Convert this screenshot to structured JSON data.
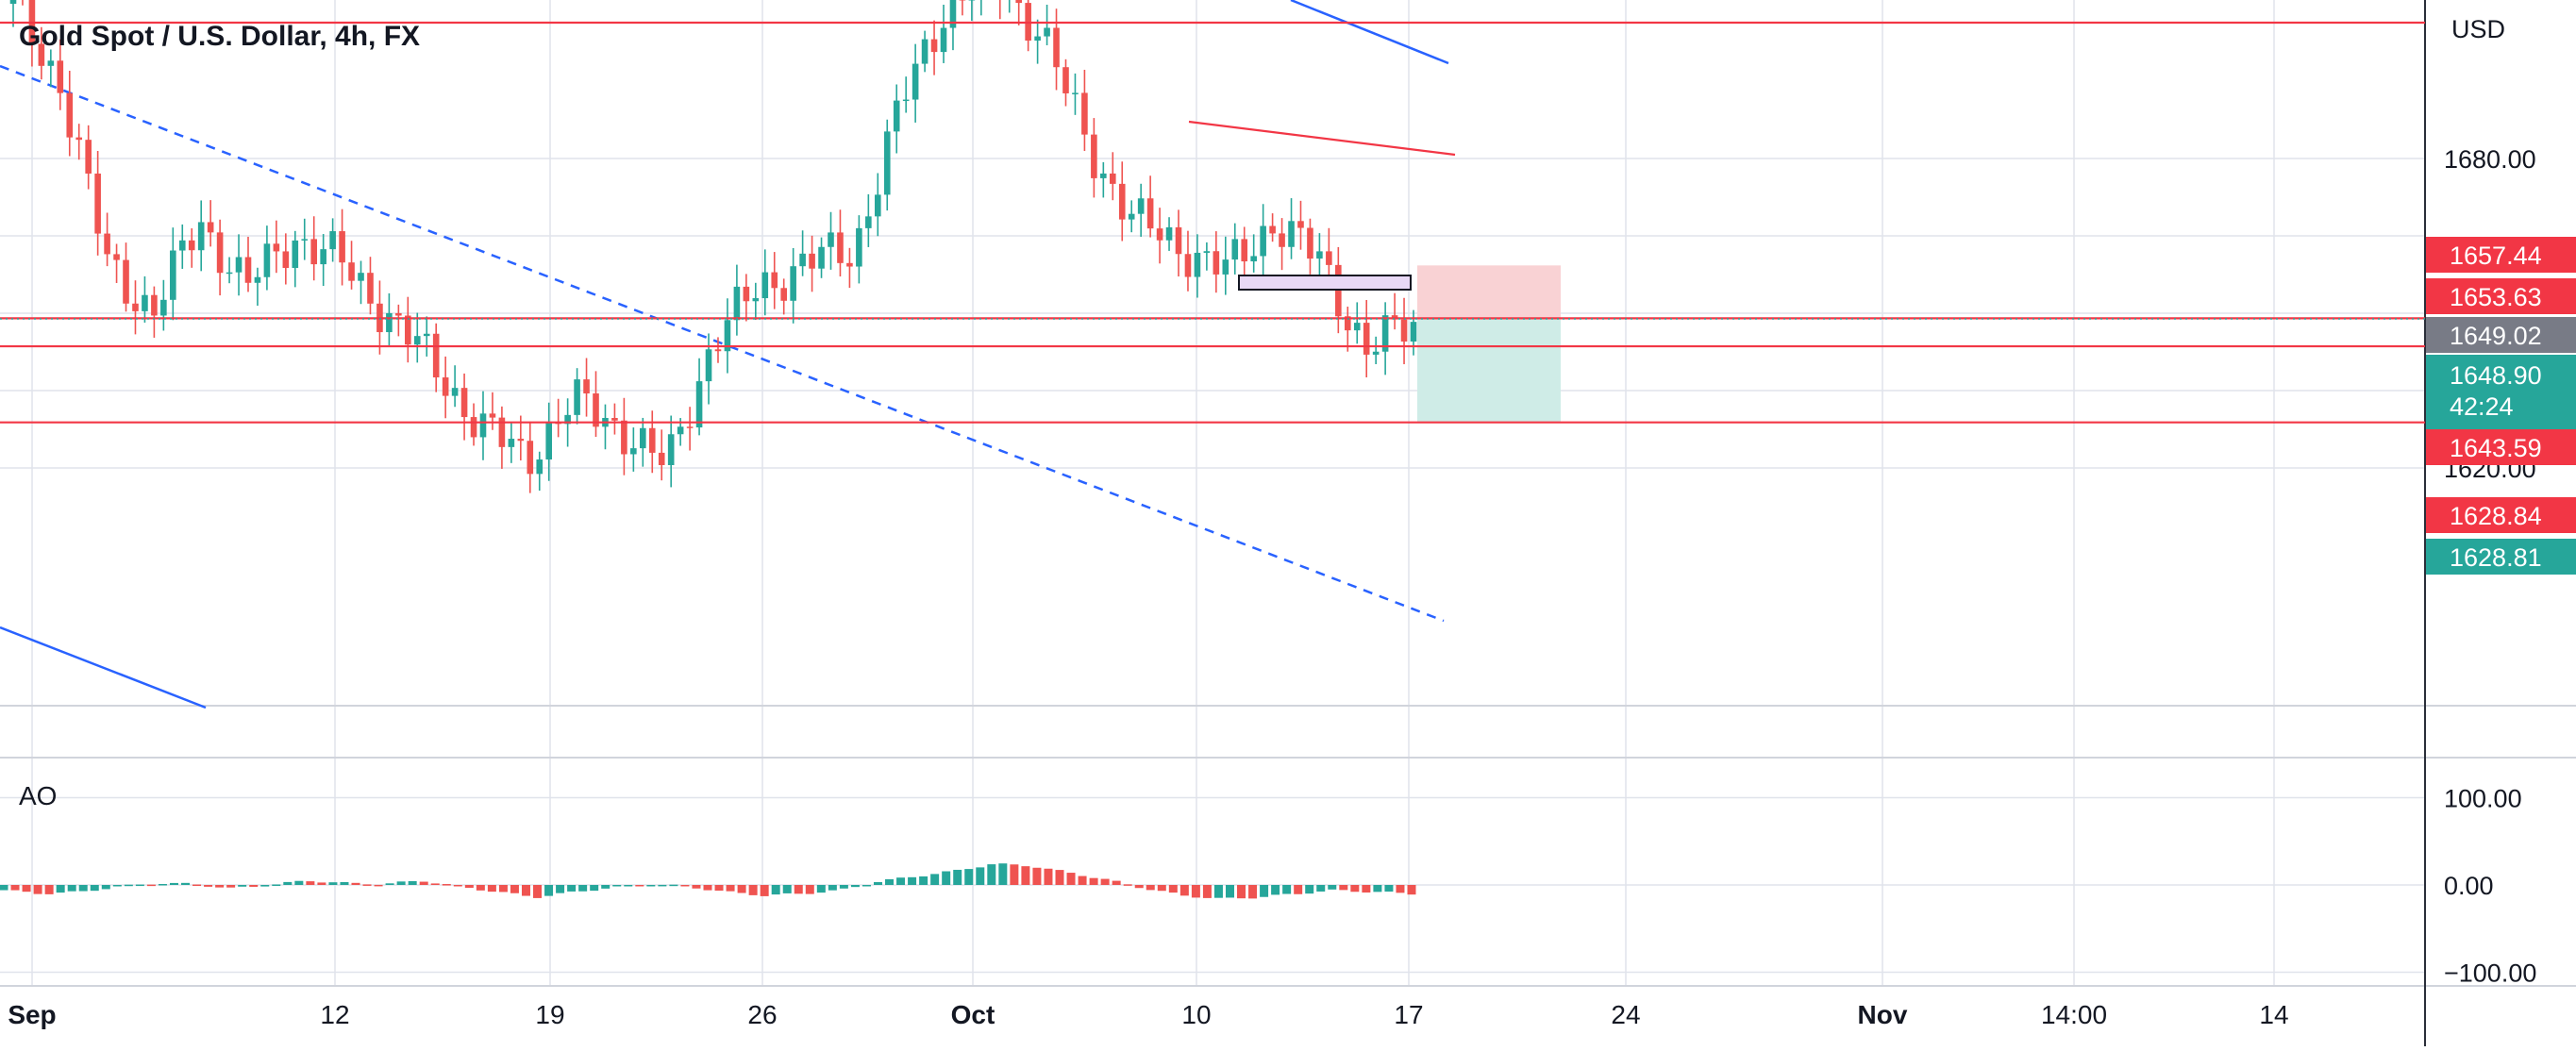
{
  "title": "Gold Spot / U.S. Dollar, 4h, FX",
  "currency": "USD",
  "indicator_label": "AO",
  "colors": {
    "up": "#26a69a",
    "down": "#ef5350",
    "hline": "#f23645",
    "trend_blue": "#2962ff",
    "grid": "#e0e3eb",
    "axis_text": "#131722",
    "long_stop_zone": "#f9d2d4",
    "long_target_zone": "#cfece7",
    "rectangle_fill": "#e8d8f5"
  },
  "price_axis": {
    "tick_labels": [
      "1680.00",
      "1620.00"
    ],
    "ticks": [
      1680,
      1620
    ]
  },
  "ao_axis": {
    "tick_labels": [
      "100.00",
      "0.00",
      "−100.00"
    ],
    "ticks": [
      100,
      0,
      -100
    ]
  },
  "price_badges": [
    {
      "label": "1657.44",
      "color": "#f23645"
    },
    {
      "label": "1653.63",
      "color": "#f23645"
    },
    {
      "label": "1649.02",
      "color": "#787b86"
    },
    {
      "label": "1648.90",
      "sub": "42:24",
      "color": "#26a69a"
    },
    {
      "label": "1643.59",
      "color": "#f23645"
    },
    {
      "label": "1628.84",
      "color": "#f23645"
    },
    {
      "label": "1628.81",
      "color": "#26a69a"
    }
  ],
  "time_axis": {
    "labels": [
      "Sep",
      "12",
      "19",
      "26",
      "Oct",
      "10",
      "17",
      "24",
      "Nov",
      "14:00",
      "14"
    ],
    "bold": [
      "Sep",
      "Oct",
      "Nov"
    ]
  },
  "chart_data": {
    "type": "candlestick",
    "title": "Gold Spot / U.S. Dollar, 4h, FX",
    "ylabel": "USD",
    "ylim": [
      1608,
      1712
    ],
    "grid": true,
    "last_price": 1648.9,
    "countdown": "42:24",
    "horizontal_levels": [
      1700.5,
      1649.02,
      1643.59,
      1628.84
    ],
    "candles_close_sample": [
      1710,
      1695,
      1660,
      1650,
      1668,
      1655,
      1665,
      1660,
      1650,
      1640,
      1628,
      1622,
      1633,
      1628,
      1620,
      1645,
      1655,
      1660,
      1662,
      1690,
      1710,
      1715,
      1705,
      1683,
      1668,
      1663,
      1658,
      1668,
      1660,
      1643,
      1648
    ],
    "indicator": {
      "name": "AO",
      "ylim": [
        -110,
        110
      ],
      "values_sample": [
        -6,
        -10,
        -8,
        -2,
        2,
        1,
        -4,
        0,
        5,
        2,
        1,
        5,
        -2,
        -8,
        -14,
        -8,
        -3,
        1,
        -2,
        -8,
        -12,
        -10,
        -6,
        4,
        10,
        16,
        24,
        22,
        14,
        6,
        -4,
        -12,
        -16,
        -14,
        -10,
        -6,
        -8,
        -10
      ]
    }
  }
}
